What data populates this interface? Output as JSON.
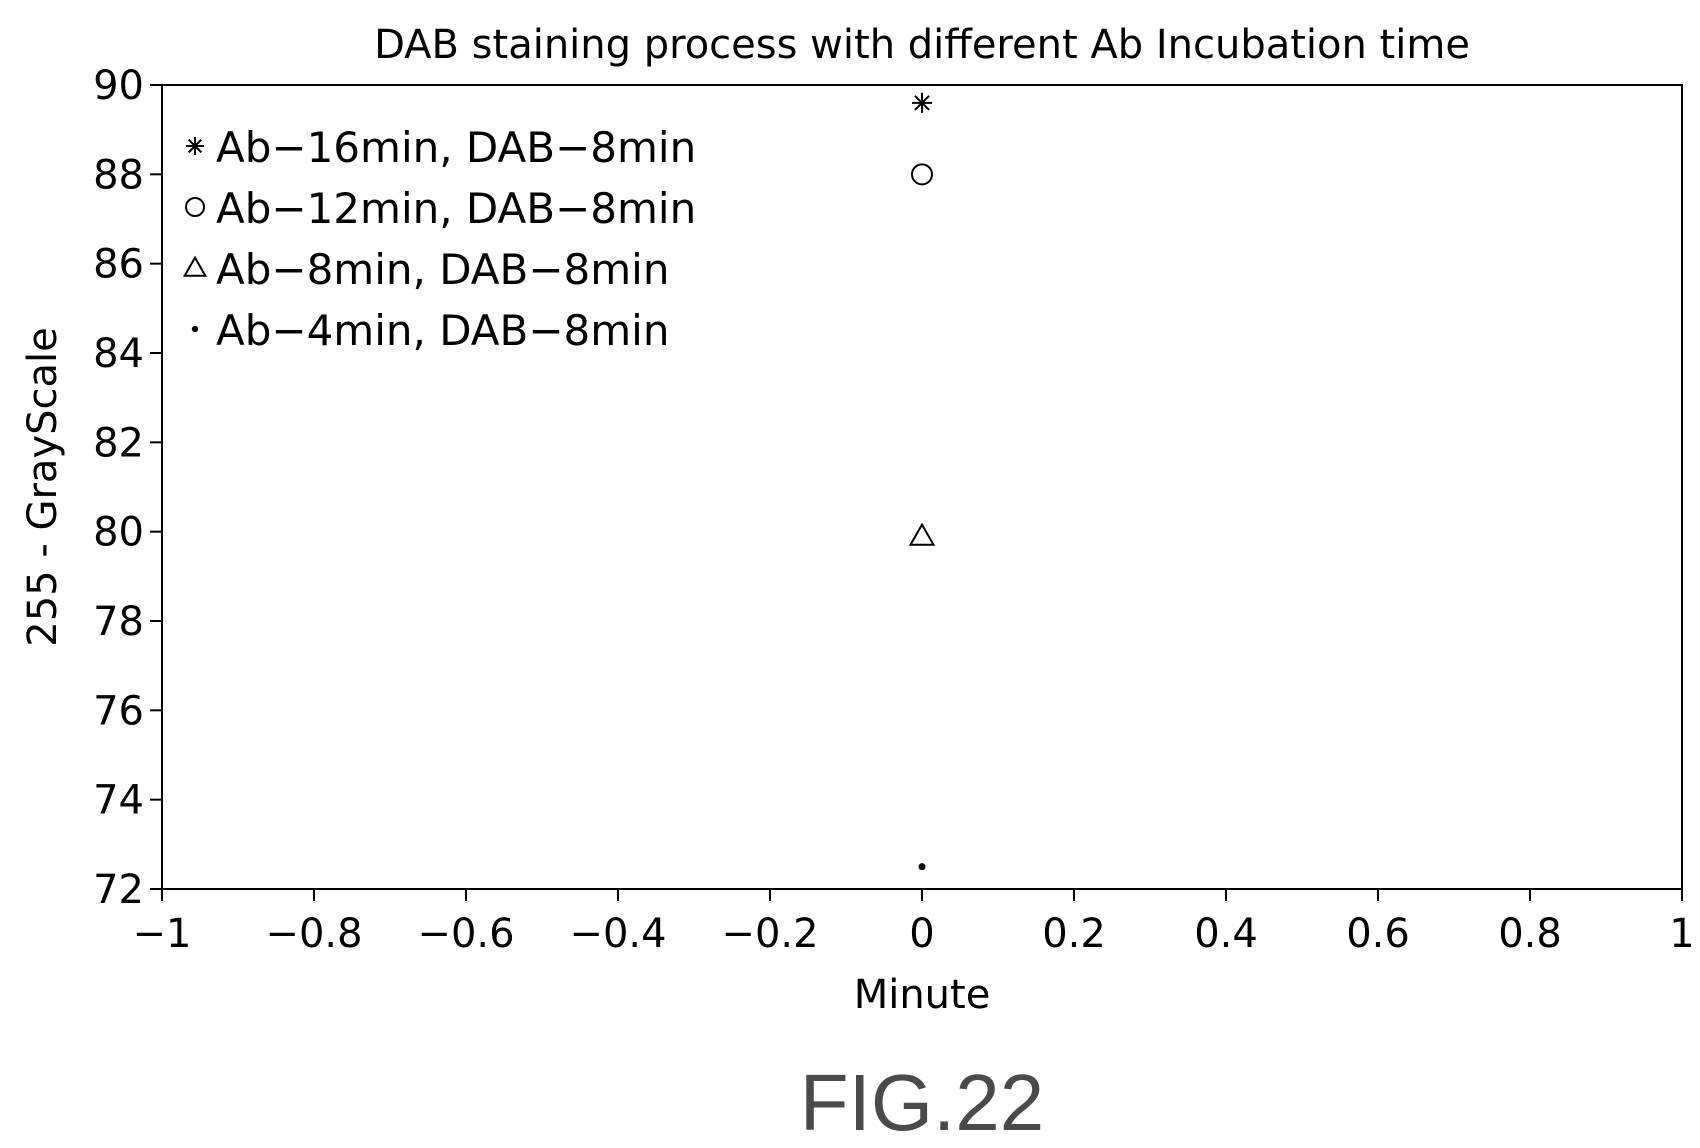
{
  "chart_data": {
    "type": "scatter",
    "title": "DAB staining process with different Ab Incubation time",
    "xlabel": "Minute",
    "ylabel": "255 - GrayScale",
    "xlim": [
      -1,
      1
    ],
    "ylim": [
      72,
      90
    ],
    "xticks": [
      "−1",
      "−0.8",
      "−0.6",
      "−0.4",
      "−0.2",
      "0",
      "0.2",
      "0.4",
      "0.6",
      "0.8",
      "1"
    ],
    "xtick_values": [
      -1,
      -0.8,
      -0.6,
      -0.4,
      -0.2,
      0,
      0.2,
      0.4,
      0.6,
      0.8,
      1
    ],
    "yticks": [
      "72",
      "74",
      "76",
      "78",
      "80",
      "82",
      "84",
      "86",
      "88",
      "90"
    ],
    "ytick_values": [
      72,
      74,
      76,
      78,
      80,
      82,
      84,
      86,
      88,
      90
    ],
    "grid": false,
    "legend_position": "top-left",
    "series": [
      {
        "name": "Ab−16min, DAB−8min",
        "marker": "star",
        "x": [
          0
        ],
        "y": [
          89.6
        ]
      },
      {
        "name": "Ab−12min, DAB−8min",
        "marker": "circle",
        "x": [
          0
        ],
        "y": [
          88.0
        ]
      },
      {
        "name": "Ab−8min, DAB−8min",
        "marker": "triangle",
        "x": [
          0
        ],
        "y": [
          79.9
        ]
      },
      {
        "name": "Ab−4min, DAB−8min",
        "marker": "dot",
        "x": [
          0
        ],
        "y": [
          72.5
        ]
      }
    ]
  },
  "figure_label": "FIG.22"
}
